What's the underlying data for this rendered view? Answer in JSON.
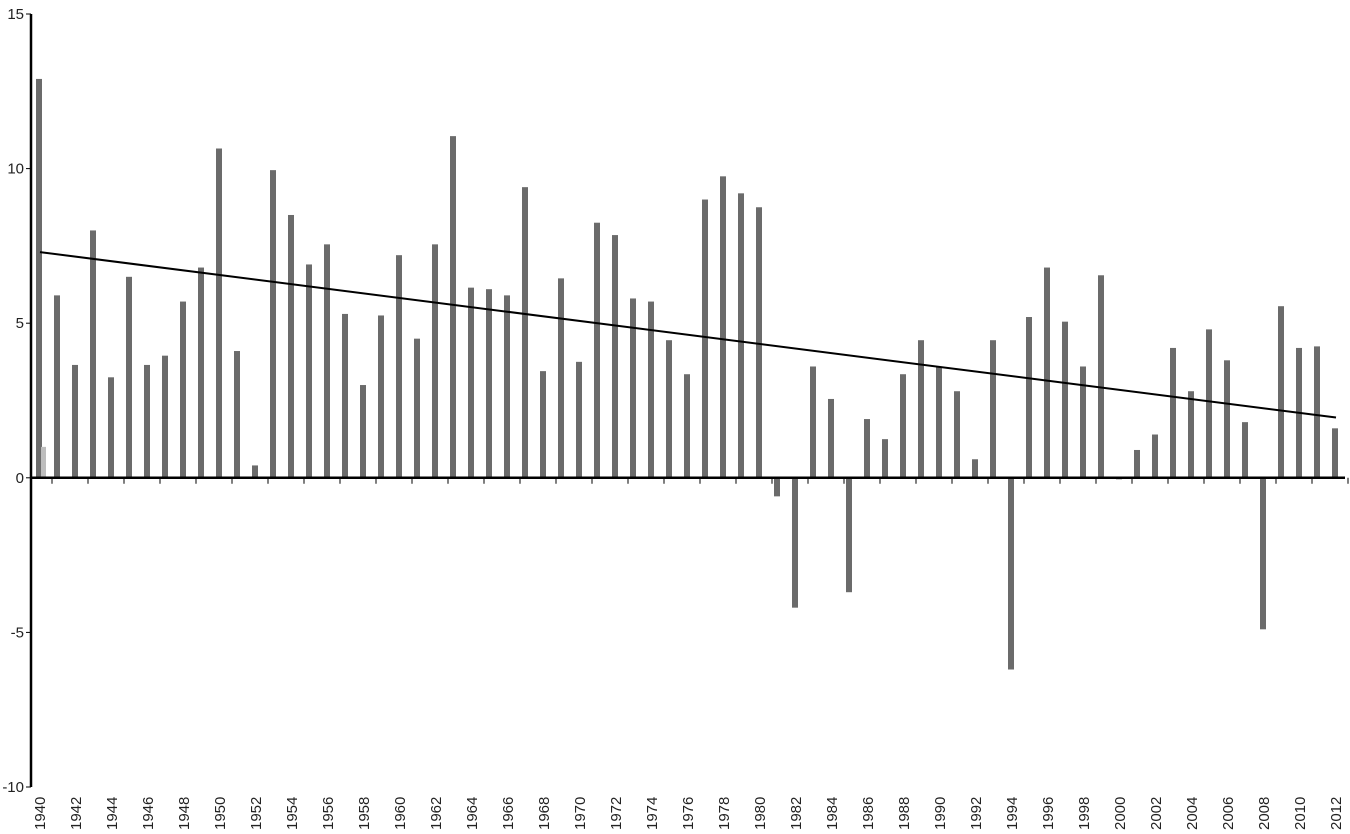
{
  "chart_data": {
    "type": "bar",
    "x": [
      1940,
      1941,
      1942,
      1943,
      1944,
      1945,
      1946,
      1947,
      1948,
      1949,
      1950,
      1951,
      1952,
      1953,
      1954,
      1955,
      1956,
      1957,
      1958,
      1959,
      1960,
      1961,
      1962,
      1963,
      1964,
      1965,
      1966,
      1967,
      1968,
      1969,
      1970,
      1971,
      1972,
      1973,
      1974,
      1975,
      1976,
      1977,
      1978,
      1979,
      1980,
      1981,
      1982,
      1983,
      1984,
      1985,
      1986,
      1987,
      1988,
      1989,
      1990,
      1991,
      1992,
      1993,
      1994,
      1995,
      1996,
      1997,
      1998,
      1999,
      2000,
      2001,
      2002,
      2003,
      2004,
      2005,
      2006,
      2007,
      2008,
      2009,
      2010,
      2011,
      2012
    ],
    "series": [
      {
        "color": "#6b6b6b",
        "values": [
          12.9,
          5.9,
          3.65,
          8.0,
          3.25,
          6.5,
          3.65,
          3.95,
          5.7,
          6.8,
          10.65,
          4.1,
          0.4,
          9.95,
          8.5,
          6.9,
          7.55,
          5.3,
          3.0,
          5.25,
          7.2,
          4.5,
          7.55,
          11.05,
          6.15,
          6.1,
          5.9,
          9.4,
          3.45,
          6.45,
          3.75,
          8.25,
          7.85,
          5.8,
          5.7,
          4.45,
          3.35,
          9.0,
          9.75,
          9.2,
          8.75,
          -0.6,
          -4.2,
          3.6,
          2.55,
          -3.7,
          1.9,
          1.25,
          3.35,
          4.45,
          3.6,
          2.8,
          0.6,
          4.45,
          -6.2,
          5.2,
          6.8,
          5.05,
          3.6,
          6.55,
          -0.05,
          0.9,
          1.4,
          4.2,
          2.8,
          4.8,
          3.8,
          1.8,
          -4.9,
          5.55,
          4.2,
          4.25,
          1.6
        ]
      },
      {
        "color": "#bdbdbd",
        "values": [
          1.0,
          null,
          null,
          null,
          null,
          null,
          null,
          null,
          null,
          null,
          null,
          null,
          null,
          null,
          null,
          null,
          null,
          null,
          null,
          null,
          null,
          null,
          null,
          null,
          null,
          null,
          null,
          null,
          null,
          null,
          null,
          null,
          null,
          null,
          null,
          null,
          null,
          null,
          null,
          null,
          null,
          null,
          null,
          null,
          null,
          null,
          null,
          null,
          null,
          null,
          null,
          null,
          null,
          null,
          null,
          null,
          null,
          null,
          null,
          null,
          null,
          null,
          null,
          null,
          null,
          null,
          null,
          null,
          null,
          null,
          null,
          null,
          null
        ]
      }
    ],
    "trend": {
      "color": "#000000",
      "x": [
        1940,
        2012
      ],
      "values": [
        7.3,
        1.95
      ]
    },
    "xlim": [
      1939.5,
      2012.5
    ],
    "xticks": [
      1940,
      1942,
      1944,
      1946,
      1948,
      1950,
      1952,
      1954,
      1956,
      1958,
      1960,
      1962,
      1964,
      1966,
      1968,
      1970,
      1972,
      1974,
      1976,
      1978,
      1980,
      1982,
      1984,
      1986,
      1988,
      1990,
      1992,
      1994,
      1996,
      1998,
      2000,
      2002,
      2004,
      2006,
      2008,
      2010,
      2012
    ],
    "ylim": [
      -10,
      15
    ],
    "yticks": [
      -10,
      -5,
      0,
      5,
      10,
      15
    ]
  }
}
